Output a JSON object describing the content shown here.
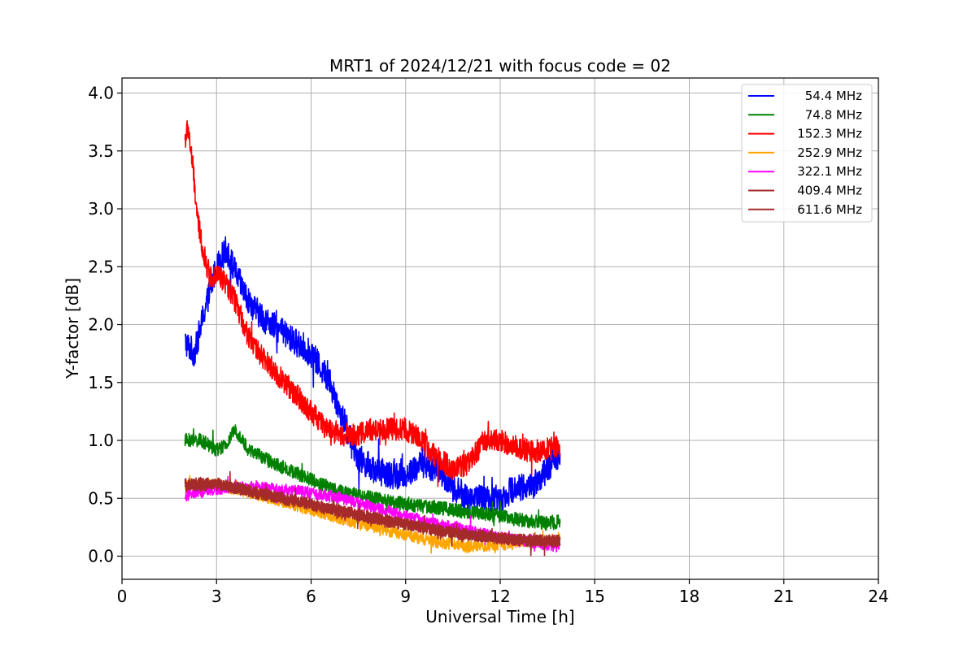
{
  "chart_data": {
    "type": "line",
    "title": "MRT1 of 2024/12/21 with focus code = 02",
    "xlabel": "Universal Time [h]",
    "ylabel": "Y-factor [dB]",
    "xlim": [
      0,
      24
    ],
    "ylim": [
      -0.2,
      4.13
    ],
    "xticks": [
      0,
      3,
      6,
      9,
      12,
      15,
      18,
      21,
      24
    ],
    "xtick_labels": [
      "0",
      "3",
      "6",
      "9",
      "12",
      "15",
      "18",
      "21",
      "24"
    ],
    "yticks": [
      0.0,
      0.5,
      1.0,
      1.5,
      2.0,
      2.5,
      3.0,
      3.5,
      4.0
    ],
    "ytick_labels": [
      "0.0",
      "0.5",
      "1.0",
      "1.5",
      "2.0",
      "2.5",
      "3.0",
      "3.5",
      "4.0"
    ],
    "grid": true,
    "legend_position": "top-right",
    "series": [
      {
        "name": "54.4 MHz",
        "color": "#0000ff",
        "noise": 0.12,
        "x": [
          2.0,
          2.3,
          2.6,
          3.0,
          3.3,
          3.6,
          4.0,
          4.5,
          5.0,
          5.5,
          6.0,
          6.5,
          7.0,
          7.5,
          8.0,
          8.5,
          9.0,
          9.5,
          10.0,
          10.5,
          11.0,
          11.5,
          12.0,
          12.5,
          13.0,
          13.5,
          13.9
        ],
        "y": [
          1.85,
          1.75,
          2.1,
          2.5,
          2.65,
          2.45,
          2.2,
          2.05,
          1.95,
          1.85,
          1.75,
          1.55,
          1.2,
          0.85,
          0.75,
          0.7,
          0.7,
          0.8,
          0.75,
          0.6,
          0.5,
          0.5,
          0.5,
          0.6,
          0.6,
          0.75,
          0.9
        ]
      },
      {
        "name": "74.8 MHz",
        "color": "#008000",
        "noise": 0.06,
        "x": [
          2.0,
          2.5,
          3.0,
          3.3,
          3.6,
          4.0,
          4.5,
          5.0,
          5.5,
          6.0,
          6.5,
          7.0,
          8.0,
          9.0,
          10.0,
          11.0,
          12.0,
          12.5,
          13.0,
          13.5,
          13.9
        ],
        "y": [
          1.0,
          1.0,
          0.92,
          0.95,
          1.1,
          0.92,
          0.85,
          0.78,
          0.72,
          0.66,
          0.6,
          0.55,
          0.5,
          0.45,
          0.42,
          0.38,
          0.35,
          0.32,
          0.3,
          0.28,
          0.3
        ]
      },
      {
        "name": "152.3 MHz",
        "color": "#ff0000",
        "noise": 0.1,
        "x": [
          2.0,
          2.1,
          2.25,
          2.4,
          2.6,
          2.8,
          3.0,
          3.3,
          3.6,
          4.0,
          4.5,
          5.0,
          5.5,
          6.0,
          6.5,
          7.0,
          7.5,
          8.0,
          8.5,
          9.0,
          9.5,
          10.0,
          10.5,
          11.0,
          11.5,
          12.0,
          12.5,
          13.0,
          13.5,
          13.9
        ],
        "y": [
          3.6,
          3.7,
          3.35,
          2.9,
          2.6,
          2.4,
          2.45,
          2.35,
          2.2,
          1.9,
          1.7,
          1.55,
          1.4,
          1.25,
          1.1,
          1.05,
          1.05,
          1.1,
          1.1,
          1.1,
          1.0,
          0.85,
          0.75,
          0.8,
          1.0,
          1.0,
          0.95,
          0.9,
          0.92,
          0.95
        ]
      },
      {
        "name": "252.9 MHz",
        "color": "#ffa500",
        "noise": 0.05,
        "x": [
          2.0,
          3.0,
          4.0,
          5.0,
          6.0,
          7.0,
          8.0,
          9.0,
          10.0,
          11.0,
          12.0,
          13.0,
          13.9
        ],
        "y": [
          0.6,
          0.62,
          0.55,
          0.48,
          0.4,
          0.32,
          0.25,
          0.18,
          0.12,
          0.08,
          0.1,
          0.12,
          0.15
        ]
      },
      {
        "name": "322.1 MHz",
        "color": "#ff00ff",
        "noise": 0.05,
        "x": [
          2.0,
          3.0,
          4.0,
          5.0,
          6.0,
          7.0,
          8.0,
          9.0,
          10.0,
          11.0,
          12.0,
          13.0,
          13.9
        ],
        "y": [
          0.52,
          0.58,
          0.6,
          0.58,
          0.55,
          0.5,
          0.42,
          0.35,
          0.28,
          0.22,
          0.16,
          0.12,
          0.08
        ]
      },
      {
        "name": "409.4 MHz",
        "color": "#a52a2a",
        "noise": 0.05,
        "x": [
          2.0,
          3.0,
          4.0,
          5.0,
          6.0,
          7.0,
          8.0,
          9.0,
          10.0,
          11.0,
          12.0,
          13.0,
          13.9
        ],
        "y": [
          0.6,
          0.62,
          0.56,
          0.5,
          0.44,
          0.38,
          0.32,
          0.27,
          0.22,
          0.18,
          0.15,
          0.13,
          0.12
        ]
      },
      {
        "name": "611.6 MHz",
        "color": "#a52a2a",
        "noise": 0.05,
        "x": [
          2.0,
          3.0,
          4.0,
          5.0,
          6.0,
          7.0,
          8.0,
          9.0,
          10.0,
          11.0,
          12.0,
          13.0,
          13.9
        ],
        "y": [
          0.62,
          0.63,
          0.57,
          0.51,
          0.45,
          0.39,
          0.33,
          0.28,
          0.23,
          0.19,
          0.16,
          0.14,
          0.13
        ]
      }
    ]
  }
}
